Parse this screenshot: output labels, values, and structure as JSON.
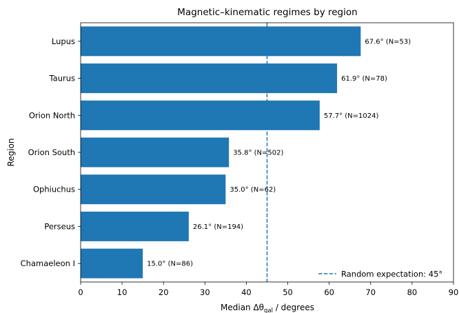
{
  "chart_data": {
    "type": "bar",
    "orientation": "horizontal",
    "title": "Magnetic–kinematic regimes by region",
    "xlabel": {
      "main": "Median Δθ",
      "subscript": "gal",
      "suffix": " / degrees"
    },
    "ylabel": "Region",
    "xlim": [
      0,
      90
    ],
    "xticks": [
      0,
      10,
      20,
      30,
      40,
      50,
      60,
      70,
      80,
      90
    ],
    "grid": false,
    "bar_color": "#1f77b4",
    "categories": [
      "Lupus",
      "Taurus",
      "Orion North",
      "Orion South",
      "Ophiuchus",
      "Perseus",
      "Chamaeleon I"
    ],
    "values": [
      67.6,
      61.9,
      57.7,
      35.8,
      35.0,
      26.1,
      15.0
    ],
    "data_labels": [
      "67.6°  (N=53)",
      "61.9°  (N=78)",
      "57.7°  (N=1024)",
      "35.8°  (N=502)",
      "35.0°  (N=62)",
      "26.1°  (N=194)",
      "15.0°  (N=86)"
    ],
    "reference_line": {
      "x": 45,
      "style": "dashed",
      "color": "#1f77b4",
      "label": "Random expectation: 45°"
    },
    "legend": {
      "placement": "lower-right",
      "entries": [
        "Random expectation: 45°"
      ]
    }
  }
}
